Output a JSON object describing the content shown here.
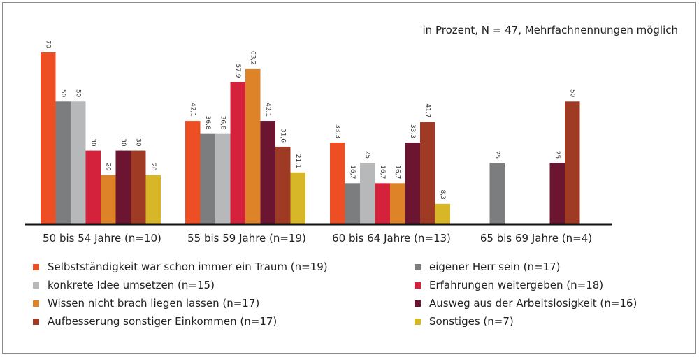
{
  "chart_data": {
    "type": "bar",
    "note": "in Prozent, N = 47, Mehrfachnennungen möglich",
    "categories": [
      "50 bis 54 Jahre (n=10)",
      "55 bis 59 Jahre (n=19)",
      "60 bis 64 Jahre (n=13)",
      "65 bis 69 Jahre (n=4)"
    ],
    "ylim": [
      0,
      70
    ],
    "grid": false,
    "legend_position": "bottom",
    "series": [
      {
        "name": "Selbstständigkeit war schon immer ein Traum (n=19)",
        "color": "#ee4e23",
        "values": [
          70,
          42.1,
          33.3,
          null
        ],
        "labels": [
          "70",
          "42,1",
          "33,3",
          ""
        ]
      },
      {
        "name": "eigener Herr sein (n=17)",
        "color": "#7c7d7f",
        "values": [
          50,
          36.8,
          16.7,
          25
        ],
        "labels": [
          "50",
          "36,8",
          "16,7",
          "25"
        ]
      },
      {
        "name": "konkrete Idee umsetzen (n=15)",
        "color": "#b7b8ba",
        "values": [
          50,
          36.8,
          25,
          null
        ],
        "labels": [
          "50",
          "36,8",
          "25",
          ""
        ]
      },
      {
        "name": "Erfahrungen weitergeben (n=18)",
        "color": "#d4213c",
        "values": [
          30,
          57.9,
          16.7,
          null
        ],
        "labels": [
          "30",
          "57,9",
          "16,7",
          ""
        ]
      },
      {
        "name": "Wissen nicht brach liegen lassen (n=17)",
        "color": "#de8327",
        "values": [
          20,
          63.2,
          16.7,
          null
        ],
        "labels": [
          "20",
          "63,2",
          "16,7",
          ""
        ]
      },
      {
        "name": "Ausweg aus der Arbeitslosigkeit (n=16)",
        "color": "#6b1530",
        "values": [
          30,
          42.1,
          33.3,
          25
        ],
        "labels": [
          "30",
          "42,1",
          "33,3",
          "25"
        ]
      },
      {
        "name": "Aufbesserung sonstiger Einkommen (n=17)",
        "color": "#9f3b24",
        "values": [
          30,
          31.6,
          41.7,
          50
        ],
        "labels": [
          "30",
          "31,6",
          "41,7",
          "50"
        ]
      },
      {
        "name": "Sonstiges (n=7)",
        "color": "#d7b728",
        "values": [
          20,
          21.1,
          8.3,
          null
        ],
        "labels": [
          "20",
          "21,1",
          "8,3",
          ""
        ]
      }
    ]
  }
}
